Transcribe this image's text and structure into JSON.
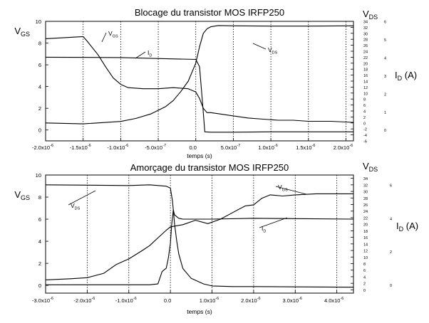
{
  "chart_data": [
    {
      "type": "line",
      "title": "Blocage du transistor MOS IRFP250",
      "xlabel": "temps (s)",
      "left_axis": {
        "label_main": "V",
        "label_sub": "GS",
        "ylim": [
          -1,
          10
        ],
        "ticks": [
          "0",
          "2",
          "4",
          "6",
          "8",
          "10"
        ]
      },
      "right_axis_1": {
        "label_main": "V",
        "label_sub": "DS",
        "ylim": [
          -6,
          34
        ],
        "ticks": [
          "-6",
          "-4",
          "-2",
          "0",
          "2",
          "4",
          "6",
          "8",
          "10",
          "12",
          "14",
          "16",
          "18",
          "20",
          "22",
          "24",
          "26",
          "28",
          "30",
          "32",
          "34"
        ]
      },
      "right_axis_2": {
        "label_main": "I",
        "label_sub": "D",
        "label_unit": " (A)",
        "ylim": [
          -0.6,
          6
        ],
        "ticks": [
          "0",
          "1",
          "2",
          "3",
          "4",
          "5",
          "6"
        ]
      },
      "x_ticks": [
        {
          "mantissa": "-2.0x10",
          "exp": "-6"
        },
        {
          "mantissa": "-1.5x10",
          "exp": "-6"
        },
        {
          "mantissa": "-1.0x10",
          "exp": "-6"
        },
        {
          "mantissa": "-5.0x10",
          "exp": "-7"
        },
        {
          "mantissa": "0.0",
          "exp": ""
        },
        {
          "mantissa": "5.0x10",
          "exp": "-7"
        },
        {
          "mantissa": "1.0x10",
          "exp": "-6"
        },
        {
          "mantissa": "1.5x10",
          "exp": "-6"
        },
        {
          "mantissa": "2.0x10",
          "exp": "-6"
        }
      ],
      "xlim": [
        -2e-06,
        2.1e-06
      ],
      "labels": [
        {
          "main": "V",
          "sub": "GS"
        },
        {
          "main": "I",
          "sub": "D"
        },
        {
          "main": "V",
          "sub": "DS"
        }
      ],
      "series": [
        {
          "axis": "left",
          "x": [
            -2e-06,
            -1.5e-06,
            -1.45e-06,
            -1.3e-06,
            -1.2e-06,
            -1.1e-06,
            -1e-06,
            -9e-07,
            -7e-07,
            -5e-07,
            -3e-07,
            -1e-07,
            0.0,
            5e-08,
            1e-07,
            1.5e-07,
            2e-07,
            3e-07,
            5e-07,
            7e-07,
            9e-07,
            1.1e-06,
            1.3e-06,
            1.5e-06,
            1.8e-06,
            2.1e-06
          ],
          "y": [
            8.4,
            8.6,
            8.2,
            6.9,
            5.8,
            4.8,
            4.2,
            3.9,
            3.8,
            3.8,
            3.9,
            3.8,
            3.5,
            2.9,
            2.0,
            1.6,
            1.6,
            1.5,
            1.3,
            1.1,
            1.0,
            0.9,
            0.9,
            0.8,
            0.8,
            0.7
          ]
        },
        {
          "axis": "right_2",
          "x": [
            -2e-06,
            -1e-06,
            0.0,
            5e-08,
            9e-08,
            1.2e-07,
            2e-07,
            5e-07,
            1e-06,
            1.5e-06,
            2.1e-06
          ],
          "y": [
            4.02,
            4.0,
            3.9,
            3.5,
            1.5,
            -0.1,
            -0.12,
            -0.12,
            -0.1,
            -0.1,
            -0.1
          ]
        },
        {
          "axis": "right_1",
          "x": [
            -2e-06,
            -1.5e-06,
            -1e-06,
            -8e-07,
            -6e-07,
            -4e-07,
            -3e-07,
            -2e-07,
            -1e-07,
            0.0,
            5e-08,
            1e-07,
            1.5e-07,
            2e-07,
            3e-07,
            5e-07,
            1e-06,
            1.5e-06,
            2.1e-06
          ],
          "y": [
            0.0,
            -0.3,
            0.5,
            1.5,
            3.0,
            5.5,
            7.5,
            10.5,
            14.0,
            20.0,
            25.5,
            30.0,
            31.5,
            32.2,
            32.6,
            32.5,
            32.4,
            32.4,
            32.5
          ]
        }
      ]
    },
    {
      "type": "line",
      "title": "Amorçage du transistor MOS IRFP250",
      "xlabel": "temps (s)",
      "left_axis": {
        "label_main": "V",
        "label_sub": "GS",
        "ylim": [
          -0.7,
          10
        ],
        "ticks": [
          "0",
          "2",
          "4",
          "6",
          "8",
          "10"
        ]
      },
      "right_axis_1": {
        "label_main": "V",
        "label_sub": "DS",
        "ylim": [
          -1,
          35
        ],
        "ticks": [
          "0",
          "2",
          "4",
          "6",
          "8",
          "10",
          "12",
          "14",
          "16",
          "18",
          "20",
          "22",
          "24",
          "26",
          "28",
          "30",
          "32",
          "34"
        ]
      },
      "right_axis_2": {
        "label_main": "I",
        "label_sub": "D",
        "label_unit": " (A)",
        "ylim": [
          -0.5,
          6.6
        ],
        "ticks": [
          "0",
          "2",
          "4",
          "6"
        ]
      },
      "x_ticks": [
        {
          "mantissa": "-3.0x10",
          "exp": "-6"
        },
        {
          "mantissa": "-2.0x10",
          "exp": "-6"
        },
        {
          "mantissa": "-1.0x10",
          "exp": "-6"
        },
        {
          "mantissa": "0.0",
          "exp": ""
        },
        {
          "mantissa": "1.0x10",
          "exp": "-6"
        },
        {
          "mantissa": "2.0x10",
          "exp": "-6"
        },
        {
          "mantissa": "3.0x10",
          "exp": "-6"
        },
        {
          "mantissa": "4.0x10",
          "exp": "-6"
        }
      ],
      "xlim": [
        -3e-06,
        4.4e-06
      ],
      "labels": [
        {
          "main": "V",
          "sub": "DS"
        },
        {
          "main": "V",
          "sub": "GS"
        },
        {
          "main": "I",
          "sub": "D"
        }
      ],
      "series": [
        {
          "axis": "left",
          "x": [
            -3e-06,
            -2.4e-06,
            -2e-06,
            -1.6e-06,
            -1.3e-06,
            -1e-06,
            -7e-07,
            -5e-07,
            -3e-07,
            -1e-07,
            0.0,
            3e-07,
            6e-07,
            9e-07,
            1.2e-06,
            1.5e-06,
            1.8e-06,
            2e-06,
            2.2e-06,
            2.4e-06,
            2.7e-06,
            3e-06,
            3.5e-06,
            4e-06,
            4.4e-06
          ],
          "y": [
            0.5,
            0.6,
            0.7,
            1.1,
            1.9,
            2.4,
            3.1,
            3.6,
            4.3,
            5.0,
            5.3,
            5.5,
            5.9,
            5.6,
            6.0,
            6.6,
            7.2,
            7.3,
            7.9,
            8.2,
            8.1,
            8.2,
            8.3,
            8.3,
            8.3
          ]
        },
        {
          "axis": "right_1",
          "x": [
            -3e-06,
            -1e-06,
            -5e-07,
            -1e-07,
            0.0,
            5e-08,
            1e-07,
            1.5e-07,
            2e-07,
            3e-07,
            5e-07,
            8e-07,
            1e-06,
            1.5e-06,
            2e-06,
            3e-06,
            4.4e-06
          ],
          "y": [
            32.0,
            31.8,
            32.0,
            31.6,
            31.0,
            27.0,
            20.0,
            15.0,
            11.0,
            6.5,
            3.5,
            1.8,
            1.2,
            1.0,
            1.0,
            0.9,
            0.8
          ]
        },
        {
          "axis": "right_2",
          "x": [
            -3e-06,
            -1e-06,
            -5e-07,
            -3e-07,
            -2e-07,
            -1e-07,
            -5e-08,
            0.0,
            3e-08,
            7e-08,
            1e-07,
            2e-07,
            3e-07,
            5e-07,
            1e-06,
            2e-06,
            3e-06,
            4.4e-06
          ],
          "y": [
            0.0,
            0.0,
            0.0,
            0.05,
            0.8,
            1.0,
            1.6,
            2.5,
            3.6,
            4.5,
            4.2,
            4.0,
            3.95,
            3.95,
            3.95,
            4.0,
            3.98,
            3.95
          ]
        }
      ]
    }
  ]
}
